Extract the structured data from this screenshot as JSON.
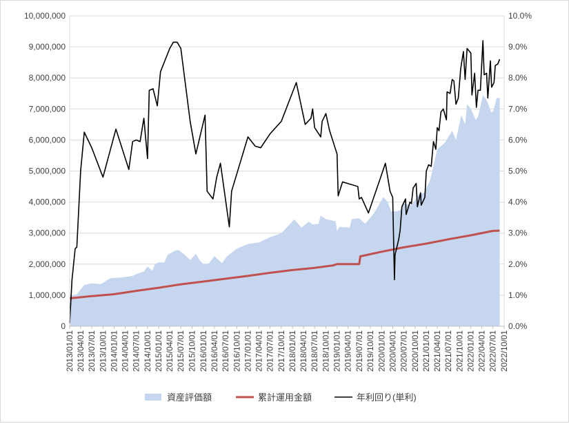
{
  "chart_data": {
    "type": "line",
    "title": "",
    "xlabel": "",
    "ylabel_left": "",
    "ylabel_right": "",
    "y_left_lim": [
      0,
      10000000
    ],
    "y_right_lim": [
      0,
      10.0
    ],
    "y_left_ticks": [
      "0",
      "1,000,000",
      "2,000,000",
      "3,000,000",
      "4,000,000",
      "5,000,000",
      "6,000,000",
      "7,000,000",
      "8,000,000",
      "9,000,000",
      "10,000,000"
    ],
    "y_right_ticks": [
      "0.0%",
      "1.0%",
      "2.0%",
      "3.0%",
      "4.0%",
      "5.0%",
      "6.0%",
      "7.0%",
      "8.0%",
      "9.0%",
      "10.0%"
    ],
    "x_ticks": [
      "2013/01/01",
      "2013/04/01",
      "2013/07/01",
      "2013/10/01",
      "2014/01/01",
      "2014/04/01",
      "2014/07/01",
      "2014/10/01",
      "2015/01/01",
      "2015/04/01",
      "2015/07/01",
      "2015/10/01",
      "2016/01/01",
      "2016/04/01",
      "2016/07/01",
      "2016/10/01",
      "2017/01/01",
      "2017/04/01",
      "2017/07/01",
      "2017/10/01",
      "2018/01/01",
      "2018/04/01",
      "2018/07/01",
      "2018/10/01",
      "2019/01/01",
      "2019/04/01",
      "2019/07/01",
      "2019/10/01",
      "2020/01/01",
      "2020/04/01",
      "2020/07/01",
      "2020/10/01",
      "2021/01/01",
      "2021/04/01",
      "2021/07/01",
      "2021/10/01",
      "2022/01/01",
      "2022/04/01",
      "2022/07/01",
      "2022/10/01"
    ],
    "x_range": [
      "2013/01/01",
      "2022/10/01"
    ],
    "grid": "horizontal",
    "legend_position": "bottom",
    "series": [
      {
        "name": "資産評価額",
        "type": "area",
        "axis": "left",
        "color": "#c5d6ee",
        "points": [
          [
            "2013/01/01",
            950000
          ],
          [
            "2013/03/01",
            1030000
          ],
          [
            "2013/05/01",
            1330000
          ],
          [
            "2013/07/01",
            1380000
          ],
          [
            "2013/09/15",
            1360000
          ],
          [
            "2013/12/01",
            1550000
          ],
          [
            "2014/03/01",
            1570000
          ],
          [
            "2014/06/01",
            1620000
          ],
          [
            "2014/07/15",
            1700000
          ],
          [
            "2014/09/01",
            1760000
          ],
          [
            "2014/10/01",
            1920000
          ],
          [
            "2014/11/10",
            1790000
          ],
          [
            "2014/12/01",
            2000000
          ],
          [
            "2015/01/01",
            2060000
          ],
          [
            "2015/02/15",
            2050000
          ],
          [
            "2015/03/15",
            2300000
          ],
          [
            "2015/05/15",
            2440000
          ],
          [
            "2015/06/15",
            2450000
          ],
          [
            "2015/08/01",
            2300000
          ],
          [
            "2015/09/15",
            2130000
          ],
          [
            "2015/11/01",
            2330000
          ],
          [
            "2015/12/01",
            2130000
          ],
          [
            "2016/01/01",
            2000000
          ],
          [
            "2016/02/15",
            2020000
          ],
          [
            "2016/04/01",
            2260000
          ],
          [
            "2016/06/01",
            2030000
          ],
          [
            "2016/07/15",
            2260000
          ],
          [
            "2016/10/01",
            2500000
          ],
          [
            "2017/01/01",
            2650000
          ],
          [
            "2017/04/01",
            2700000
          ],
          [
            "2017/07/01",
            2870000
          ],
          [
            "2017/10/01",
            3000000
          ],
          [
            "2018/01/15",
            3440000
          ],
          [
            "2018/03/15",
            3180000
          ],
          [
            "2018/05/15",
            3370000
          ],
          [
            "2018/06/15",
            3280000
          ],
          [
            "2018/08/01",
            3300000
          ],
          [
            "2018/08/20",
            3560000
          ],
          [
            "2018/10/01",
            3450000
          ],
          [
            "2018/12/20",
            3380000
          ],
          [
            "2019/01/01",
            3060000
          ],
          [
            "2019/01/20",
            3200000
          ],
          [
            "2019/04/15",
            3180000
          ],
          [
            "2019/05/01",
            3450000
          ],
          [
            "2019/07/01",
            3480000
          ],
          [
            "2019/08/20",
            3300000
          ],
          [
            "2019/11/01",
            3650000
          ],
          [
            "2020/01/15",
            4160000
          ],
          [
            "2020/02/20",
            4000000
          ],
          [
            "2020/03/20",
            3700000
          ],
          [
            "2020/05/01",
            3700000
          ],
          [
            "2020/06/01",
            3740000
          ],
          [
            "2020/07/01",
            3950000
          ],
          [
            "2020/09/01",
            3900000
          ],
          [
            "2020/11/01",
            4250000
          ],
          [
            "2020/12/15",
            4300000
          ],
          [
            "2021/02/01",
            4700000
          ],
          [
            "2021/04/01",
            5700000
          ],
          [
            "2021/06/01",
            5900000
          ],
          [
            "2021/08/01",
            6300000
          ],
          [
            "2021/09/01",
            6000000
          ],
          [
            "2021/10/15",
            6800000
          ],
          [
            "2021/11/15",
            6500000
          ],
          [
            "2021/12/01",
            7150000
          ],
          [
            "2022/01/01",
            7000000
          ],
          [
            "2022/02/10",
            6650000
          ],
          [
            "2022/03/01",
            6750000
          ],
          [
            "2022/04/10",
            7450000
          ],
          [
            "2022/05/15",
            7250000
          ],
          [
            "2022/06/15",
            6900000
          ],
          [
            "2022/07/01",
            6900000
          ],
          [
            "2022/08/01",
            7350000
          ],
          [
            "2022/08/25",
            7350000
          ]
        ]
      },
      {
        "name": "累計運用金額",
        "type": "line",
        "axis": "left",
        "color": "#c0504d",
        "points": [
          [
            "2013/01/01",
            900000
          ],
          [
            "2013/03/01",
            920000
          ],
          [
            "2013/06/01",
            960000
          ],
          [
            "2014/01/01",
            1030000
          ],
          [
            "2014/07/01",
            1140000
          ],
          [
            "2015/01/01",
            1240000
          ],
          [
            "2015/07/01",
            1350000
          ],
          [
            "2016/01/01",
            1440000
          ],
          [
            "2016/07/01",
            1530000
          ],
          [
            "2017/01/01",
            1620000
          ],
          [
            "2017/07/01",
            1720000
          ],
          [
            "2018/01/01",
            1810000
          ],
          [
            "2018/07/01",
            1880000
          ],
          [
            "2018/12/01",
            1960000
          ],
          [
            "2019/01/01",
            2000000
          ],
          [
            "2019/07/01",
            2000000
          ],
          [
            "2019/07/10",
            2250000
          ],
          [
            "2020/01/01",
            2400000
          ],
          [
            "2020/07/01",
            2540000
          ],
          [
            "2021/01/01",
            2660000
          ],
          [
            "2021/07/01",
            2800000
          ],
          [
            "2022/01/01",
            2930000
          ],
          [
            "2022/07/01",
            3070000
          ],
          [
            "2022/08/25",
            3080000
          ]
        ]
      },
      {
        "name": "年利回り(単利)",
        "type": "line",
        "axis": "right",
        "color": "#000000",
        "points": [
          [
            "2013/01/01",
            0.1
          ],
          [
            "2013/01/20",
            1.5
          ],
          [
            "2013/02/15",
            2.5
          ],
          [
            "2013/03/01",
            2.55
          ],
          [
            "2013/04/01",
            5.0
          ],
          [
            "2013/05/01",
            6.25
          ],
          [
            "2013/07/01",
            5.75
          ],
          [
            "2013/10/01",
            4.8
          ],
          [
            "2014/01/15",
            6.35
          ],
          [
            "2014/05/01",
            5.05
          ],
          [
            "2014/06/01",
            5.95
          ],
          [
            "2014/07/01",
            6.0
          ],
          [
            "2014/08/01",
            5.95
          ],
          [
            "2014/09/01",
            6.7
          ],
          [
            "2014/10/01",
            5.4
          ],
          [
            "2014/10/15",
            7.6
          ],
          [
            "2014/11/15",
            7.65
          ],
          [
            "2014/12/20",
            7.1
          ],
          [
            "2015/01/15",
            8.2
          ],
          [
            "2015/04/01",
            8.95
          ],
          [
            "2015/05/01",
            9.15
          ],
          [
            "2015/06/01",
            9.15
          ],
          [
            "2015/07/01",
            8.95
          ],
          [
            "2015/09/15",
            6.6
          ],
          [
            "2015/11/01",
            5.55
          ],
          [
            "2016/01/15",
            6.8
          ],
          [
            "2016/02/01",
            4.35
          ],
          [
            "2016/03/20",
            4.1
          ],
          [
            "2016/04/20",
            4.8
          ],
          [
            "2016/05/20",
            5.25
          ],
          [
            "2016/08/01",
            3.2
          ],
          [
            "2016/08/20",
            4.35
          ],
          [
            "2017/01/01",
            6.1
          ],
          [
            "2017/03/01",
            5.8
          ],
          [
            "2017/04/15",
            5.75
          ],
          [
            "2017/07/01",
            6.2
          ],
          [
            "2017/10/01",
            6.6
          ],
          [
            "2018/02/01",
            7.85
          ],
          [
            "2018/04/15",
            6.5
          ],
          [
            "2018/06/01",
            6.7
          ],
          [
            "2018/06/15",
            7.0
          ],
          [
            "2018/07/01",
            6.4
          ],
          [
            "2018/08/20",
            6.1
          ],
          [
            "2018/09/01",
            6.6
          ],
          [
            "2018/10/01",
            6.85
          ],
          [
            "2018/11/01",
            6.3
          ],
          [
            "2019/01/01",
            5.55
          ],
          [
            "2019/01/10",
            4.2
          ],
          [
            "2019/02/15",
            4.65
          ],
          [
            "2019/06/20",
            4.5
          ],
          [
            "2019/07/01",
            4.1
          ],
          [
            "2019/07/20",
            4.15
          ],
          [
            "2019/09/15",
            3.65
          ],
          [
            "2019/10/20",
            4.05
          ],
          [
            "2019/12/20",
            4.75
          ],
          [
            "2020/02/01",
            5.25
          ],
          [
            "2020/03/10",
            4.35
          ],
          [
            "2020/04/01",
            4.15
          ],
          [
            "2020/04/15",
            1.5
          ],
          [
            "2020/04/20",
            2.3
          ],
          [
            "2020/05/20",
            2.8
          ],
          [
            "2020/06/01",
            3.1
          ],
          [
            "2020/06/15",
            3.85
          ],
          [
            "2020/07/15",
            4.1
          ],
          [
            "2020/07/20",
            3.6
          ],
          [
            "2020/08/20",
            4.0
          ],
          [
            "2020/09/01",
            3.95
          ],
          [
            "2020/09/15",
            4.45
          ],
          [
            "2020/10/10",
            4.6
          ],
          [
            "2020/10/20",
            3.85
          ],
          [
            "2020/11/15",
            4.3
          ],
          [
            "2020/11/20",
            3.9
          ],
          [
            "2020/12/20",
            4.15
          ],
          [
            "2021/01/01",
            5.0
          ],
          [
            "2021/01/20",
            5.2
          ],
          [
            "2021/02/10",
            5.15
          ],
          [
            "2021/03/01",
            5.95
          ],
          [
            "2021/03/20",
            5.7
          ],
          [
            "2021/04/01",
            6.4
          ],
          [
            "2021/04/15",
            6.3
          ],
          [
            "2021/05/01",
            6.9
          ],
          [
            "2021/05/20",
            7.0
          ],
          [
            "2021/06/15",
            6.65
          ],
          [
            "2021/06/20",
            7.55
          ],
          [
            "2021/07/15",
            7.5
          ],
          [
            "2021/08/01",
            7.95
          ],
          [
            "2021/08/15",
            7.9
          ],
          [
            "2021/09/01",
            7.15
          ],
          [
            "2021/09/20",
            7.35
          ],
          [
            "2021/10/10",
            8.3
          ],
          [
            "2021/11/01",
            8.85
          ],
          [
            "2021/11/15",
            7.95
          ],
          [
            "2021/12/01",
            8.95
          ],
          [
            "2022/01/01",
            8.8
          ],
          [
            "2022/01/10",
            7.45
          ],
          [
            "2022/02/01",
            8.15
          ],
          [
            "2022/02/15",
            7.05
          ],
          [
            "2022/03/01",
            7.6
          ],
          [
            "2022/03/20",
            7.6
          ],
          [
            "2022/04/10",
            9.2
          ],
          [
            "2022/04/20",
            8.1
          ],
          [
            "2022/05/10",
            8.15
          ],
          [
            "2022/05/20",
            7.35
          ],
          [
            "2022/06/10",
            8.55
          ],
          [
            "2022/06/20",
            7.7
          ],
          [
            "2022/07/10",
            7.85
          ],
          [
            "2022/07/20",
            8.4
          ],
          [
            "2022/08/10",
            8.45
          ],
          [
            "2022/08/25",
            8.6
          ]
        ]
      }
    ]
  }
}
